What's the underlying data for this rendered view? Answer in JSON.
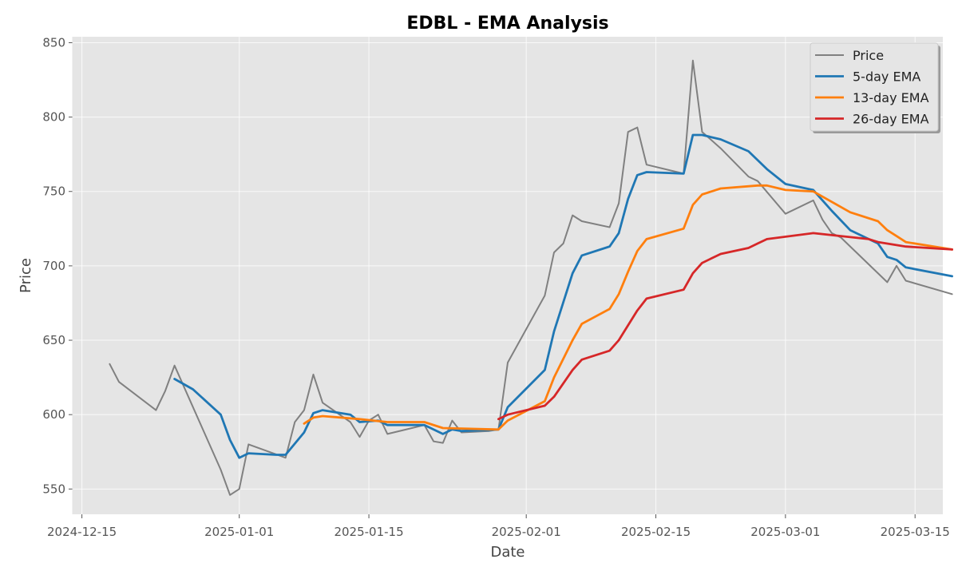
{
  "chart_data": {
    "type": "line",
    "title": "EDBL - EMA Analysis",
    "xlabel": "Date",
    "ylabel": "Price",
    "xlim": [
      "2024-12-14",
      "2025-03-18"
    ],
    "ylim": [
      533,
      854
    ],
    "x_ticks": [
      "2024-12-15",
      "2025-01-01",
      "2025-01-15",
      "2025-02-01",
      "2025-02-15",
      "2025-03-01",
      "2025-03-15"
    ],
    "y_ticks": [
      550,
      600,
      650,
      700,
      750,
      800,
      850
    ],
    "grid": true,
    "legend_position": "top-right",
    "colors": {
      "background": "#e5e5e5",
      "grid": "#ffffff",
      "price": "#808080",
      "ema5": "#1f77b4",
      "ema13": "#ff7f0e",
      "ema26": "#d62728"
    },
    "series": [
      {
        "name": "Price",
        "color": "#808080",
        "points": [
          [
            "2024-12-18",
            634
          ],
          [
            "2024-12-19",
            622
          ],
          [
            "2024-12-23",
            603
          ],
          [
            "2024-12-24",
            616
          ],
          [
            "2024-12-25",
            633
          ],
          [
            "2024-12-30",
            563
          ],
          [
            "2024-12-31",
            546
          ],
          [
            "2025-01-01",
            550
          ],
          [
            "2025-01-02",
            580
          ],
          [
            "2025-01-06",
            571
          ],
          [
            "2025-01-07",
            595
          ],
          [
            "2025-01-08",
            603
          ],
          [
            "2025-01-09",
            627
          ],
          [
            "2025-01-10",
            608
          ],
          [
            "2025-01-13",
            595
          ],
          [
            "2025-01-14",
            585
          ],
          [
            "2025-01-15",
            596
          ],
          [
            "2025-01-16",
            600
          ],
          [
            "2025-01-17",
            587
          ],
          [
            "2025-01-21",
            593
          ],
          [
            "2025-01-22",
            582
          ],
          [
            "2025-01-23",
            581
          ],
          [
            "2025-01-24",
            596
          ],
          [
            "2025-01-25",
            588
          ],
          [
            "2025-01-28",
            589
          ],
          [
            "2025-01-29",
            590
          ],
          [
            "2025-01-30",
            635
          ],
          [
            "2025-02-03",
            680
          ],
          [
            "2025-02-04",
            709
          ],
          [
            "2025-02-05",
            715
          ],
          [
            "2025-02-06",
            734
          ],
          [
            "2025-02-07",
            730
          ],
          [
            "2025-02-10",
            726
          ],
          [
            "2025-02-11",
            742
          ],
          [
            "2025-02-12",
            790
          ],
          [
            "2025-02-13",
            793
          ],
          [
            "2025-02-14",
            768
          ],
          [
            "2025-02-18",
            762
          ],
          [
            "2025-02-19",
            838
          ],
          [
            "2025-02-20",
            790
          ],
          [
            "2025-02-22",
            779
          ],
          [
            "2025-02-25",
            760
          ],
          [
            "2025-02-26",
            757
          ],
          [
            "2025-03-01",
            735
          ],
          [
            "2025-03-04",
            744
          ],
          [
            "2025-03-05",
            731
          ],
          [
            "2025-03-06",
            722
          ],
          [
            "2025-03-07",
            719
          ],
          [
            "2025-03-12",
            689
          ],
          [
            "2025-03-13",
            700
          ],
          [
            "2025-03-14",
            690
          ],
          [
            "2025-03-19",
            681
          ]
        ]
      },
      {
        "name": "5-day EMA",
        "color": "#1f77b4",
        "points": [
          [
            "2024-12-25",
            624
          ],
          [
            "2024-12-27",
            617
          ],
          [
            "2024-12-30",
            600
          ],
          [
            "2024-12-31",
            583
          ],
          [
            "2025-01-01",
            571
          ],
          [
            "2025-01-02",
            574
          ],
          [
            "2025-01-05",
            573
          ],
          [
            "2025-01-06",
            573
          ],
          [
            "2025-01-08",
            588
          ],
          [
            "2025-01-09",
            601
          ],
          [
            "2025-01-10",
            603
          ],
          [
            "2025-01-13",
            600
          ],
          [
            "2025-01-14",
            595
          ],
          [
            "2025-01-16",
            596
          ],
          [
            "2025-01-17",
            593
          ],
          [
            "2025-01-21",
            593
          ],
          [
            "2025-01-23",
            587
          ],
          [
            "2025-01-24",
            590
          ],
          [
            "2025-01-25",
            589
          ],
          [
            "2025-01-29",
            590
          ],
          [
            "2025-01-30",
            605
          ],
          [
            "2025-02-03",
            630
          ],
          [
            "2025-02-04",
            656
          ],
          [
            "2025-02-06",
            695
          ],
          [
            "2025-02-07",
            707
          ],
          [
            "2025-02-10",
            713
          ],
          [
            "2025-02-11",
            722
          ],
          [
            "2025-02-12",
            745
          ],
          [
            "2025-02-13",
            761
          ],
          [
            "2025-02-14",
            763
          ],
          [
            "2025-02-18",
            762
          ],
          [
            "2025-02-19",
            788
          ],
          [
            "2025-02-20",
            788
          ],
          [
            "2025-02-22",
            785
          ],
          [
            "2025-02-25",
            777
          ],
          [
            "2025-02-27",
            765
          ],
          [
            "2025-03-01",
            755
          ],
          [
            "2025-03-04",
            751
          ],
          [
            "2025-03-06",
            737
          ],
          [
            "2025-03-08",
            724
          ],
          [
            "2025-03-11",
            715
          ],
          [
            "2025-03-12",
            706
          ],
          [
            "2025-03-13",
            704
          ],
          [
            "2025-03-14",
            699
          ],
          [
            "2025-03-19",
            693
          ]
        ]
      },
      {
        "name": "13-day EMA",
        "color": "#ff7f0e",
        "points": [
          [
            "2025-01-08",
            594
          ],
          [
            "2025-01-09",
            598
          ],
          [
            "2025-01-10",
            599
          ],
          [
            "2025-01-14",
            597
          ],
          [
            "2025-01-17",
            595
          ],
          [
            "2025-01-21",
            595
          ],
          [
            "2025-01-23",
            591
          ],
          [
            "2025-01-29",
            590
          ],
          [
            "2025-01-30",
            596
          ],
          [
            "2025-02-03",
            609
          ],
          [
            "2025-02-04",
            625
          ],
          [
            "2025-02-06",
            650
          ],
          [
            "2025-02-07",
            661
          ],
          [
            "2025-02-10",
            671
          ],
          [
            "2025-02-11",
            681
          ],
          [
            "2025-02-12",
            696
          ],
          [
            "2025-02-13",
            710
          ],
          [
            "2025-02-14",
            718
          ],
          [
            "2025-02-18",
            725
          ],
          [
            "2025-02-19",
            741
          ],
          [
            "2025-02-20",
            748
          ],
          [
            "2025-02-22",
            752
          ],
          [
            "2025-02-26",
            754
          ],
          [
            "2025-02-27",
            754
          ],
          [
            "2025-03-01",
            751
          ],
          [
            "2025-03-04",
            750
          ],
          [
            "2025-03-08",
            736
          ],
          [
            "2025-03-11",
            730
          ],
          [
            "2025-03-12",
            724
          ],
          [
            "2025-03-13",
            720
          ],
          [
            "2025-03-14",
            716
          ],
          [
            "2025-03-19",
            711
          ]
        ]
      },
      {
        "name": "26-day EMA",
        "color": "#d62728",
        "points": [
          [
            "2025-01-29",
            597
          ],
          [
            "2025-01-30",
            600
          ],
          [
            "2025-02-03",
            606
          ],
          [
            "2025-02-04",
            612
          ],
          [
            "2025-02-05",
            621
          ],
          [
            "2025-02-06",
            630
          ],
          [
            "2025-02-07",
            637
          ],
          [
            "2025-02-10",
            643
          ],
          [
            "2025-02-11",
            650
          ],
          [
            "2025-02-12",
            660
          ],
          [
            "2025-02-13",
            670
          ],
          [
            "2025-02-14",
            678
          ],
          [
            "2025-02-18",
            684
          ],
          [
            "2025-02-19",
            695
          ],
          [
            "2025-02-20",
            702
          ],
          [
            "2025-02-22",
            708
          ],
          [
            "2025-02-25",
            712
          ],
          [
            "2025-02-26",
            715
          ],
          [
            "2025-02-27",
            718
          ],
          [
            "2025-03-04",
            722
          ],
          [
            "2025-03-07",
            720
          ],
          [
            "2025-03-10",
            718
          ],
          [
            "2025-03-11",
            716
          ],
          [
            "2025-03-14",
            713
          ],
          [
            "2025-03-19",
            711
          ]
        ]
      }
    ]
  }
}
